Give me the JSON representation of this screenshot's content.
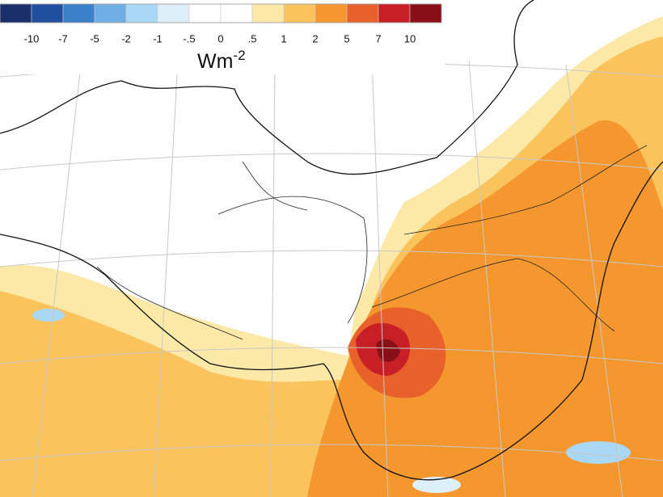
{
  "colorbar": {
    "colors": [
      "#1b2f6b",
      "#1f4f9e",
      "#3b80c9",
      "#6fafe3",
      "#aad7f3",
      "#ddf0fa",
      "#ffffff",
      "#ffffff",
      "#fde9a7",
      "#fbc35c",
      "#f5972f",
      "#e8612a",
      "#c81f26",
      "#8a1017"
    ],
    "levels": [
      -10,
      -7,
      -5,
      -2,
      -1,
      {
        "value": -0.5,
        "label": "-.5"
      },
      0,
      {
        "value": 0.5,
        "label": ".5"
      },
      1,
      2,
      5,
      7,
      10
    ],
    "unit": {
      "base": "Wm",
      "exponent": "-2"
    }
  }
}
